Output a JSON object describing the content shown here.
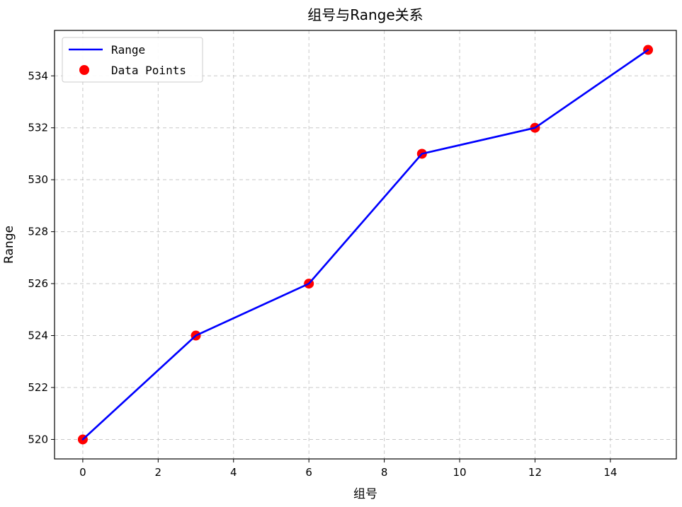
{
  "chart_data": {
    "type": "line",
    "title": "组号与Range关系",
    "xlabel": "组号",
    "ylabel": "Range",
    "x": [
      0,
      3,
      6,
      9,
      12,
      15
    ],
    "series": [
      {
        "name": "Range",
        "values": [
          520,
          524,
          526,
          531,
          532,
          535
        ],
        "color": "#0000ff",
        "style": "line"
      },
      {
        "name": "Data Points",
        "values": [
          520,
          524,
          526,
          531,
          532,
          535
        ],
        "color": "#ff0000",
        "style": "scatter"
      }
    ],
    "xlim": [
      -0.75,
      15.75
    ],
    "ylim": [
      519.25,
      535.75
    ],
    "xticks": [
      0,
      2,
      4,
      6,
      8,
      10,
      12,
      14
    ],
    "yticks": [
      520,
      522,
      524,
      526,
      528,
      530,
      532,
      534
    ],
    "grid": true,
    "grid_style": "dashed",
    "legend_position": "upper-left"
  }
}
